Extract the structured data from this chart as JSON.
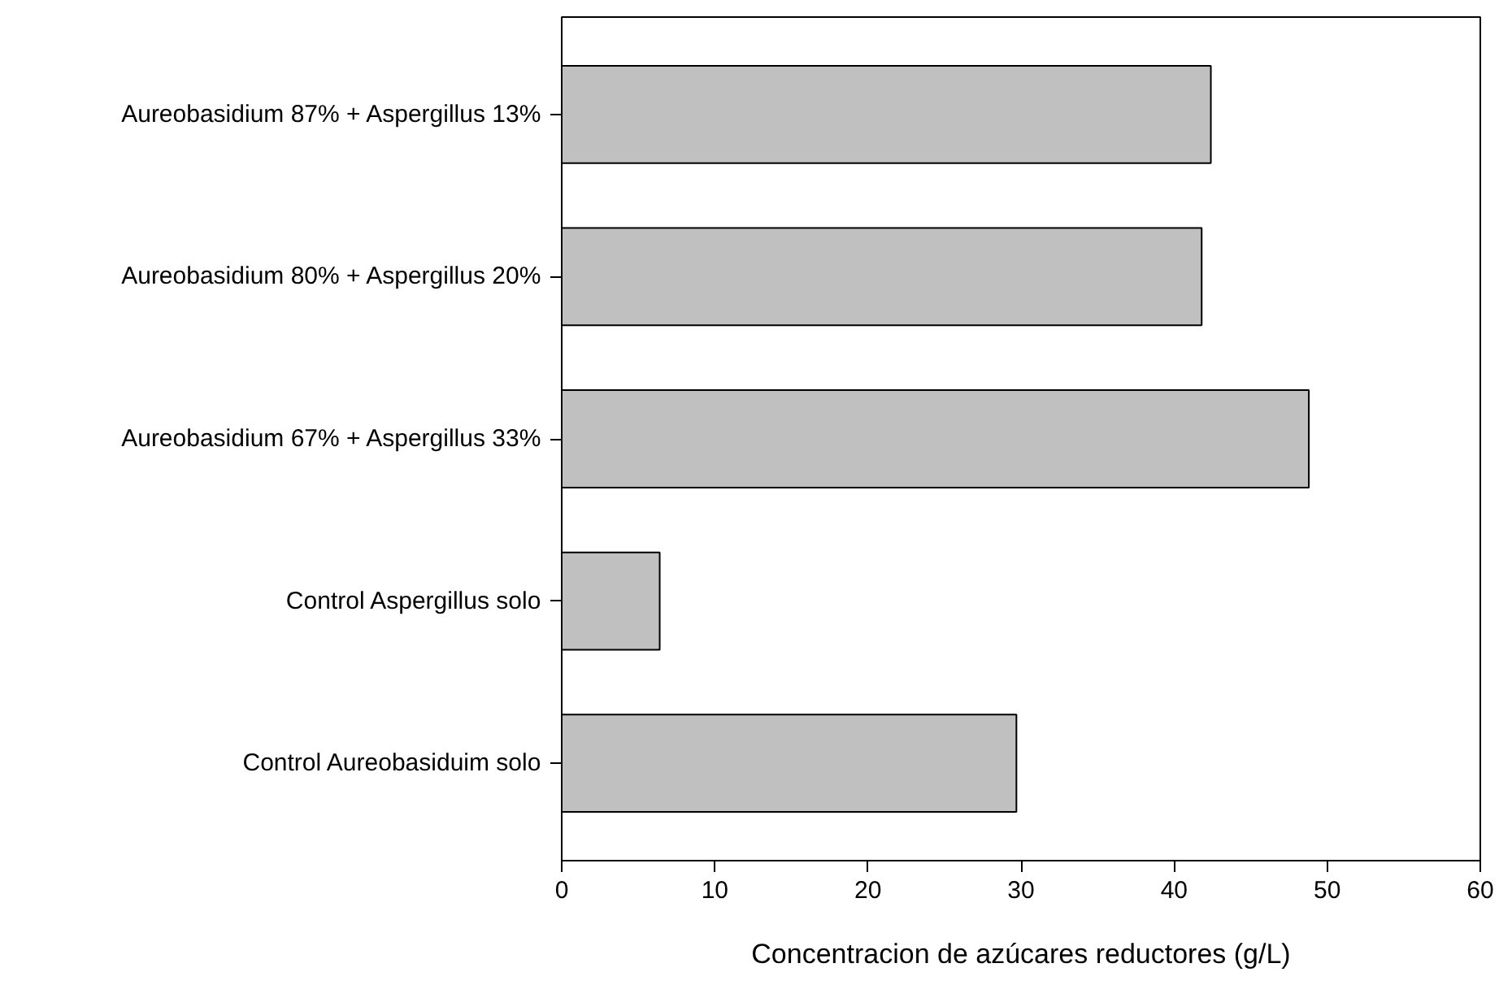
{
  "chart_data": {
    "type": "bar",
    "orientation": "horizontal",
    "xlabel": "Concentracion de azúcares reductores (g/L)",
    "categories": [
      "Aureobasidium 87% + Aspergillus 13%",
      "Aureobasidium 80% + Aspergillus 20%",
      "Aureobasidium 67% + Aspergillus 33%",
      "Control Aspergillus solo",
      "Control Aureobasiduim solo"
    ],
    "values": [
      42.4,
      41.8,
      48.8,
      6.4,
      29.7
    ],
    "color": "#c0c0c0",
    "xlim": [
      0,
      60
    ],
    "xticks": [
      0,
      10,
      20,
      30,
      40,
      50,
      60
    ],
    "grid": false
  }
}
